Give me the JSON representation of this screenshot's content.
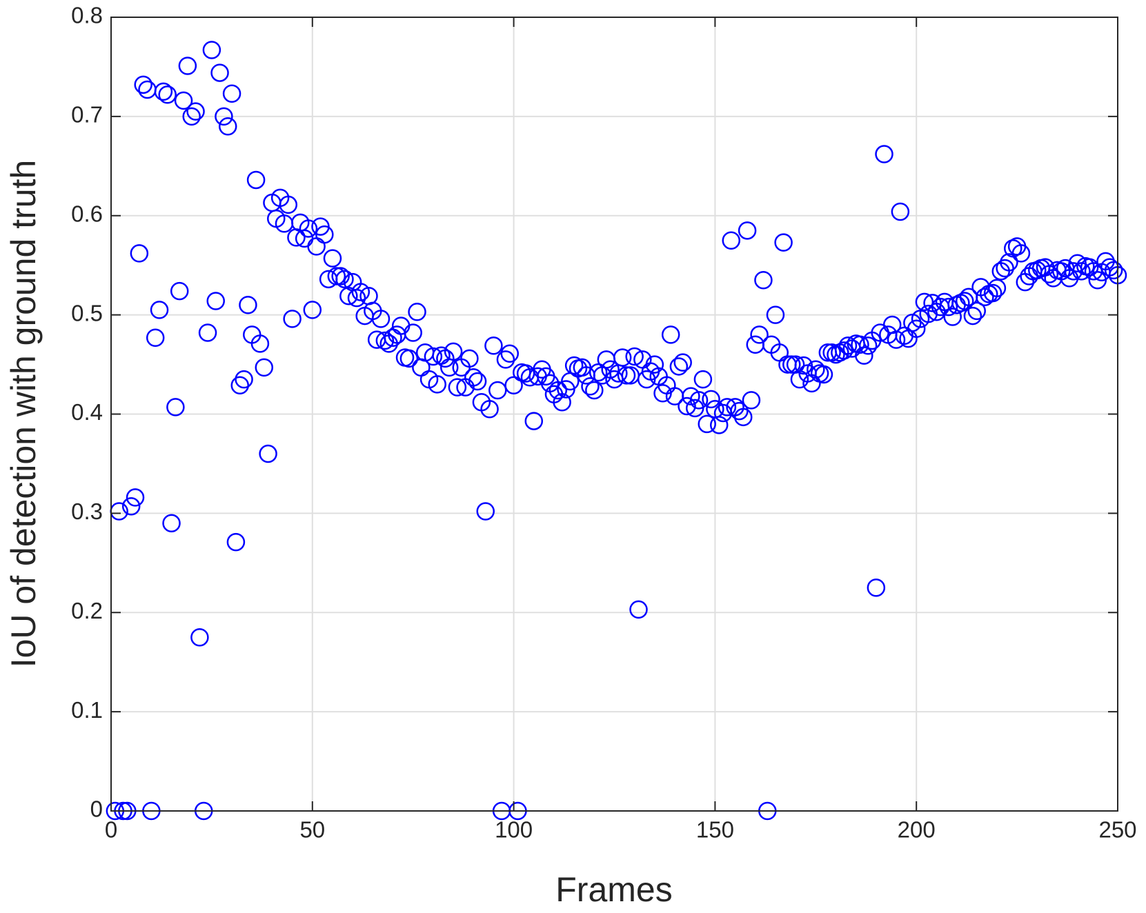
{
  "chart_data": {
    "type": "scatter",
    "xlabel": "Frames",
    "ylabel": "IoU of detection with ground truth",
    "xlim": [
      0,
      250
    ],
    "ylim": [
      0,
      0.8
    ],
    "xticks": [
      0,
      50,
      100,
      150,
      200,
      250
    ],
    "yticks": [
      0,
      0.1,
      0.2,
      0.3,
      0.4,
      0.5,
      0.6,
      0.7,
      0.8
    ],
    "grid": true,
    "color": "#0000ff",
    "marker": "open-circle",
    "x": [
      1,
      2,
      3,
      4,
      5,
      6,
      7,
      8,
      9,
      10,
      11,
      12,
      13,
      14,
      15,
      16,
      17,
      18,
      19,
      20,
      21,
      22,
      23,
      24,
      25,
      26,
      27,
      28,
      29,
      30,
      31,
      32,
      33,
      34,
      35,
      36,
      37,
      38,
      39,
      40,
      41,
      42,
      43,
      44,
      45,
      46,
      47,
      48,
      49,
      50,
      51,
      52,
      53,
      54,
      55,
      56,
      57,
      58,
      59,
      60,
      61,
      62,
      63,
      64,
      65,
      66,
      67,
      68,
      69,
      70,
      71,
      72,
      73,
      74,
      75,
      76,
      77,
      78,
      79,
      80,
      81,
      82,
      83,
      84,
      85,
      86,
      87,
      88,
      89,
      90,
      91,
      92,
      93,
      94,
      95,
      96,
      97,
      98,
      99,
      100,
      101,
      102,
      103,
      104,
      105,
      106,
      107,
      108,
      109,
      110,
      111,
      112,
      113,
      114,
      115,
      116,
      117,
      118,
      119,
      120,
      121,
      122,
      123,
      124,
      125,
      126,
      127,
      128,
      129,
      130,
      131,
      132,
      133,
      134,
      135,
      136,
      137,
      138,
      139,
      140,
      141,
      142,
      143,
      144,
      145,
      146,
      147,
      148,
      149,
      150,
      151,
      152,
      153,
      154,
      155,
      156,
      157,
      158,
      159,
      160,
      161,
      162,
      163,
      164,
      165,
      166,
      167,
      168,
      169,
      170,
      171,
      172,
      173,
      174,
      175,
      176,
      177,
      178,
      179,
      180,
      181,
      182,
      183,
      184,
      185,
      186,
      187,
      188,
      189,
      190,
      191,
      192,
      193,
      194,
      195,
      196,
      197,
      198,
      199,
      200,
      201,
      202,
      203,
      204,
      205,
      206,
      207,
      208,
      209,
      210,
      211,
      212,
      213,
      214,
      215,
      216,
      217,
      218,
      219,
      220,
      221,
      222,
      223,
      224,
      225,
      226,
      227,
      228,
      229,
      230,
      231,
      232,
      233,
      234,
      235,
      236,
      237,
      238,
      239,
      240,
      241,
      242,
      243,
      244,
      245,
      246,
      247,
      248,
      249,
      250
    ],
    "values": [
      0,
      0.302,
      0,
      0,
      0.307,
      0.316,
      0.562,
      0.732,
      0.727,
      0,
      0.477,
      0.505,
      0.725,
      0.722,
      0.29,
      0.407,
      0.524,
      0.716,
      0.751,
      0.7,
      0.705,
      0.175,
      0,
      0.482,
      0.767,
      0.514,
      0.744,
      0.7,
      0.69,
      0.723,
      0.271,
      0.429,
      0.435,
      0.51,
      0.48,
      0.636,
      0.471,
      0.447,
      0.36,
      0.613,
      0.597,
      0.618,
      0.592,
      0.611,
      0.496,
      0.578,
      0.593,
      0.577,
      0.587,
      0.505,
      0.569,
      0.589,
      0.581,
      0.536,
      0.557,
      0.539,
      0.539,
      0.536,
      0.519,
      0.533,
      0.517,
      0.523,
      0.499,
      0.519,
      0.504,
      0.475,
      0.496,
      0.474,
      0.471,
      0.477,
      0.48,
      0.489,
      0.457,
      0.456,
      0.482,
      0.503,
      0.447,
      0.462,
      0.435,
      0.458,
      0.43,
      0.459,
      0.456,
      0.447,
      0.463,
      0.427,
      0.447,
      0.427,
      0.456,
      0.437,
      0.433,
      0.412,
      0.302,
      0.405,
      0.469,
      0.424,
      0,
      0.455,
      0.461,
      0.429,
      0,
      0.442,
      0.441,
      0.437,
      0.393,
      0.438,
      0.445,
      0.438,
      0.431,
      0.42,
      0.424,
      0.412,
      0.425,
      0.433,
      0.449,
      0.446,
      0.447,
      0.439,
      0.428,
      0.424,
      0.442,
      0.439,
      0.455,
      0.445,
      0.435,
      0.441,
      0.457,
      0.439,
      0.439,
      0.458,
      0.203,
      0.455,
      0.435,
      0.443,
      0.45,
      0.438,
      0.421,
      0.429,
      0.48,
      0.418,
      0.448,
      0.452,
      0.408,
      0.418,
      0.406,
      0.414,
      0.435,
      0.39,
      0.415,
      0.405,
      0.389,
      0.401,
      0.407,
      0.575,
      0.407,
      0.403,
      0.397,
      0.585,
      0.414,
      0.47,
      0.48,
      0.535,
      0,
      0.47,
      0.5,
      0.462,
      0.573,
      0.45,
      0.45,
      0.45,
      0.435,
      0.449,
      0.441,
      0.431,
      0.445,
      0.441,
      0.44,
      0.462,
      0.462,
      0.46,
      0.462,
      0.464,
      0.469,
      0.466,
      0.471,
      0.47,
      0.459,
      0.469,
      0.474,
      0.225,
      0.482,
      0.662,
      0.48,
      0.49,
      0.475,
      0.604,
      0.479,
      0.476,
      0.492,
      0.486,
      0.496,
      0.513,
      0.501,
      0.512,
      0.503,
      0.508,
      0.513,
      0.508,
      0.498,
      0.51,
      0.512,
      0.514,
      0.518,
      0.499,
      0.504,
      0.528,
      0.518,
      0.521,
      0.522,
      0.527,
      0.544,
      0.547,
      0.553,
      0.567,
      0.569,
      0.562,
      0.533,
      0.539,
      0.544,
      0.545,
      0.547,
      0.548,
      0.541,
      0.537,
      0.545,
      0.544,
      0.547,
      0.537,
      0.544,
      0.552,
      0.544,
      0.549,
      0.548,
      0.544,
      0.535,
      0.543,
      0.554,
      0.548,
      0.545,
      0.54
    ]
  }
}
